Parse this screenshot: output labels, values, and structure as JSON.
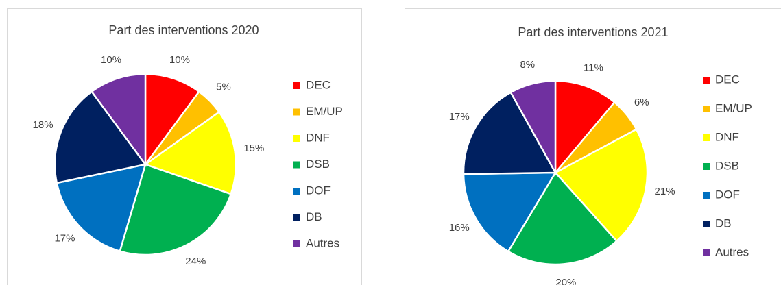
{
  "chart_data": [
    {
      "type": "pie",
      "title": "Part des interventions 2020",
      "categories": [
        "DEC",
        "EM/UP",
        "DNF",
        "DSB",
        "DOF",
        "DB",
        "Autres"
      ],
      "values": [
        10,
        5,
        15,
        24,
        17,
        18,
        10
      ],
      "value_labels": [
        "10%",
        "5%",
        "15%",
        "24%",
        "17%",
        "18%",
        "10%"
      ],
      "colors": [
        "#ff0000",
        "#ffc000",
        "#ffff00",
        "#00b050",
        "#0070c0",
        "#002060",
        "#7030a0"
      ],
      "legend": "right"
    },
    {
      "type": "pie",
      "title": "Part des interventions 2021",
      "categories": [
        "DEC",
        "EM/UP",
        "DNF",
        "DSB",
        "DOF",
        "DB",
        "Autres"
      ],
      "values": [
        11,
        6,
        21,
        20,
        16,
        17,
        8
      ],
      "value_labels": [
        "11%",
        "6%",
        "21%",
        "20%",
        "16%",
        "17%",
        "8%"
      ],
      "colors": [
        "#ff0000",
        "#ffc000",
        "#ffff00",
        "#00b050",
        "#0070c0",
        "#002060",
        "#7030a0"
      ],
      "legend": "right"
    }
  ]
}
